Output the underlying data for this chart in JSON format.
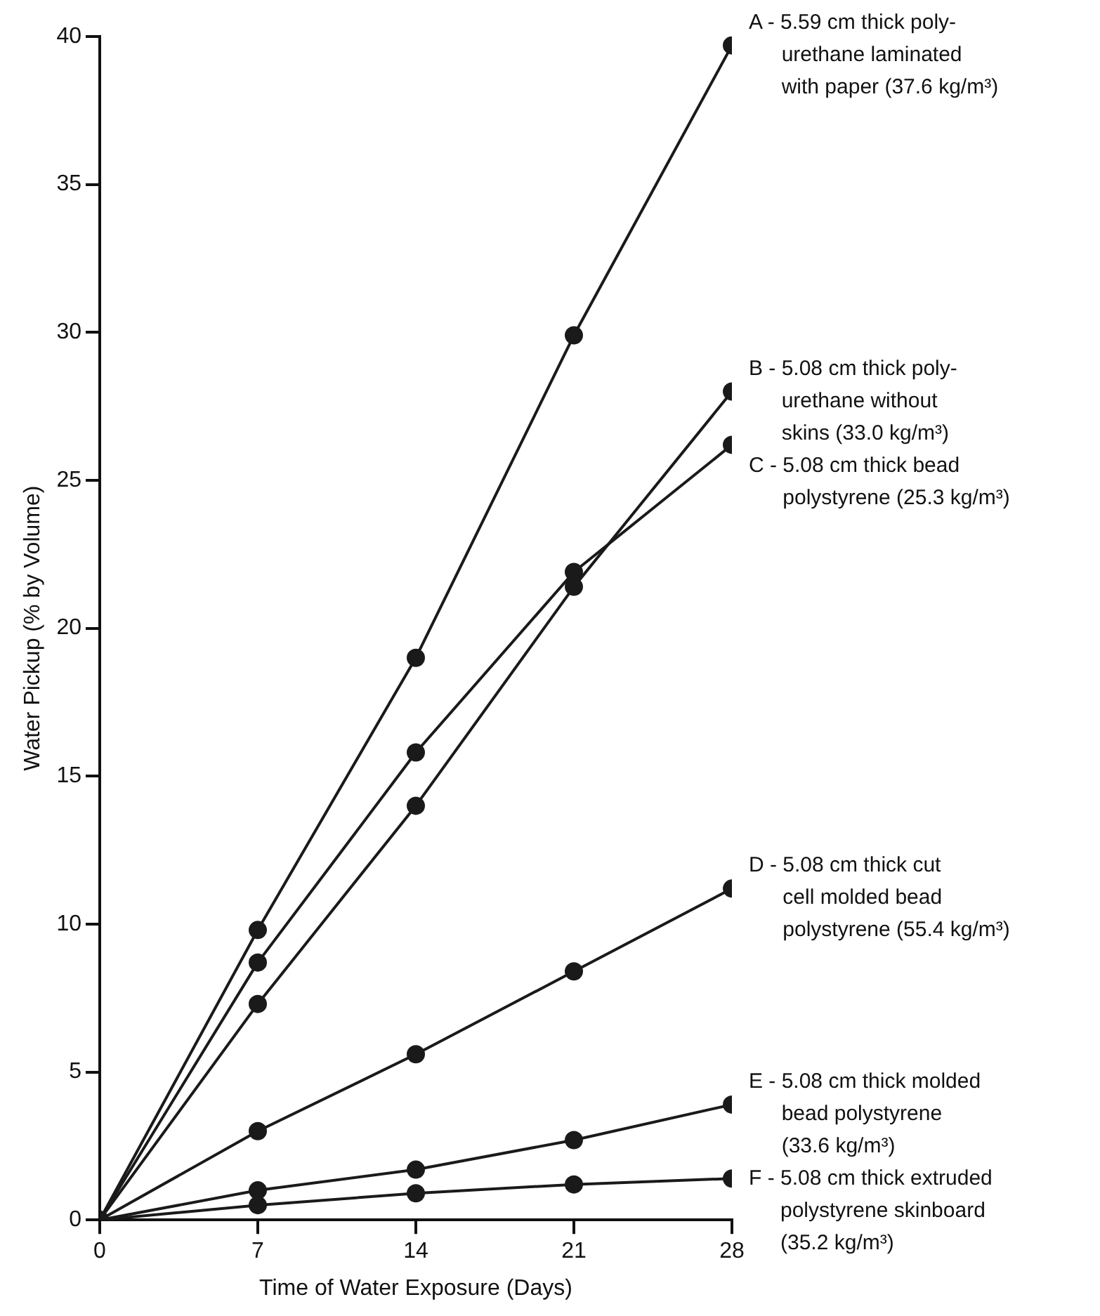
{
  "chart_data": {
    "type": "line",
    "xlabel": "Time of Water Exposure (Days)",
    "ylabel": "Water Pickup (% by Volume)",
    "x": [
      0,
      7,
      14,
      21,
      28
    ],
    "xlim": [
      0,
      28
    ],
    "xticks": [
      0,
      7,
      14,
      21,
      28
    ],
    "ylim": [
      0,
      40
    ],
    "yticks": [
      0,
      5,
      10,
      15,
      20,
      25,
      30,
      35,
      40
    ],
    "grid": false,
    "marker": "circle",
    "line_style": "solid",
    "series": [
      {
        "color": "#1a1a1a",
        "values": [
          0,
          9.8,
          19.0,
          29.9,
          39.7
        ]
      },
      {
        "color": "#1a1a1a",
        "values": [
          0,
          7.3,
          14.0,
          21.4,
          28.0
        ]
      },
      {
        "color": "#1a1a1a",
        "values": [
          0,
          8.7,
          15.8,
          21.9,
          26.2
        ]
      },
      {
        "color": "#1a1a1a",
        "values": [
          0,
          3.0,
          5.6,
          8.4,
          11.2
        ]
      },
      {
        "color": "#1a1a1a",
        "values": [
          0,
          1.0,
          1.7,
          2.7,
          3.9
        ]
      },
      {
        "color": "#1a1a1a",
        "values": [
          0,
          0.5,
          0.9,
          1.2,
          1.4
        ]
      }
    ],
    "annotations": [
      "A - 5.59 cm thick poly-\nurethane laminated\nwith paper (37.6 kg/m³)",
      "B - 5.08 cm thick poly-\nurethane without\nskins (33.0 kg/m³)",
      "C - 5.08 cm thick bead\npolystyrene (25.3 kg/m³)",
      "D - 5.08 cm thick cut\ncell molded bead\npolystyrene (55.4 kg/m³)",
      "E - 5.08 cm thick molded\nbead polystyrene\n(33.6 kg/m³)",
      "F - 5.08 cm thick extruded\npolystyrene skinboard\n(35.2 kg/m³)"
    ]
  }
}
